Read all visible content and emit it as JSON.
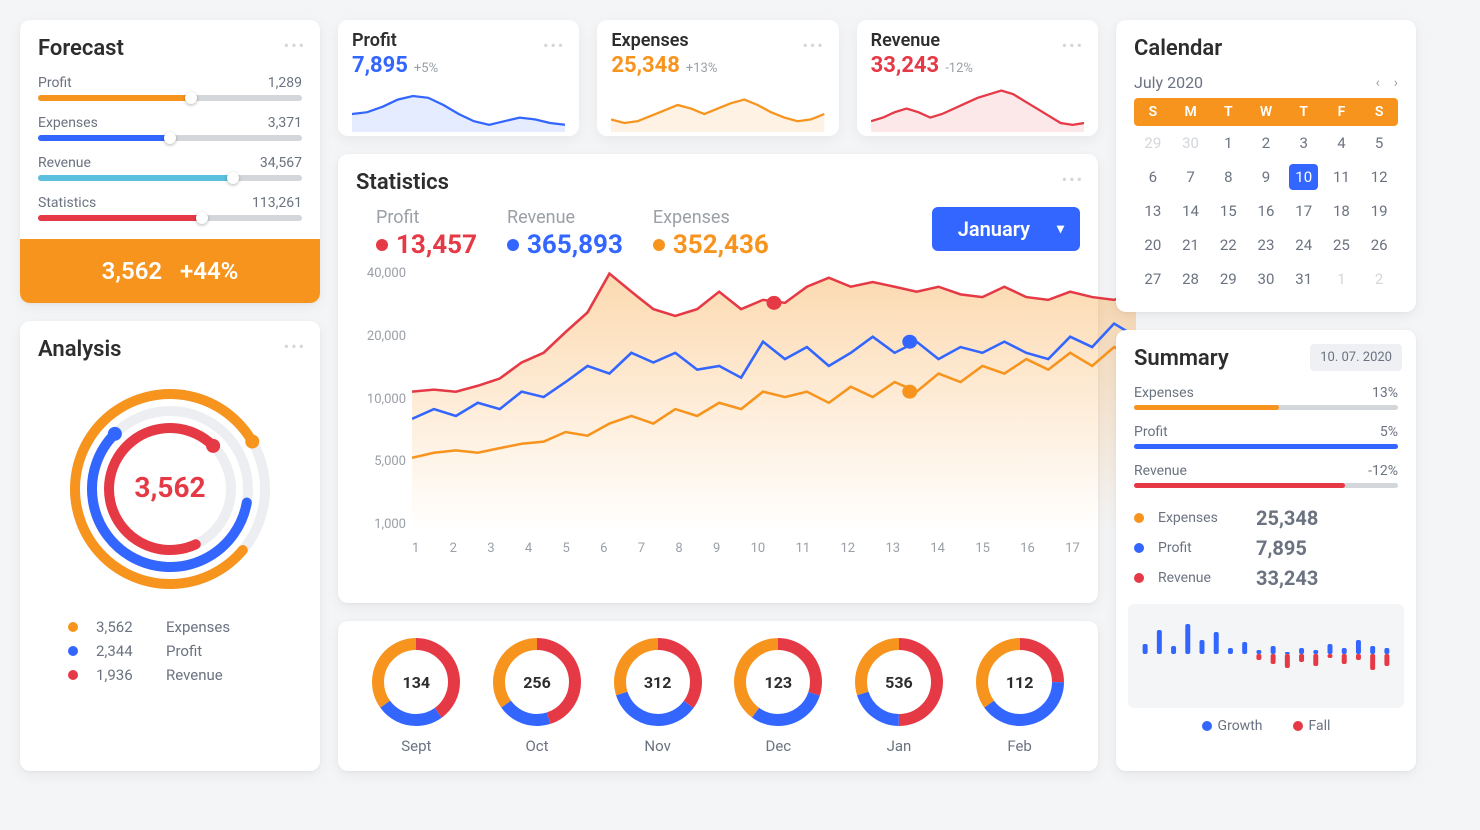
{
  "colors": {
    "orange": "#f7941e",
    "blue": "#3366ff",
    "red": "#e63946",
    "lightblue": "#5bc0de",
    "lightgrey": "#d3d6da"
  },
  "forecast": {
    "title": "Forecast",
    "rows": [
      {
        "label": "Profit",
        "value": "1,289",
        "pct": 58,
        "color": "#f7941e"
      },
      {
        "label": "Expenses",
        "value": "3,371",
        "pct": 50,
        "color": "#3366ff"
      },
      {
        "label": "Revenue",
        "value": "34,567",
        "pct": 74,
        "color": "#5bc0de"
      },
      {
        "label": "Statistics",
        "value": "113,261",
        "pct": 62,
        "color": "#e63946"
      }
    ],
    "summary_value": "3,562",
    "summary_change": "+44%"
  },
  "analysis": {
    "title": "Analysis",
    "center_value": "3,562",
    "rings": [
      {
        "color": "#f7941e",
        "radius": 95,
        "start": 130,
        "sweep": 290
      },
      {
        "color": "#3366ff",
        "radius": 78,
        "start": 100,
        "sweep": 215
      },
      {
        "color": "#e63946",
        "radius": 61,
        "start": 155,
        "sweep": 250
      }
    ],
    "legend": [
      {
        "color": "#f7941e",
        "value": "3,562",
        "label": "Expenses"
      },
      {
        "color": "#3366ff",
        "value": "2,344",
        "label": "Profit"
      },
      {
        "color": "#e63946",
        "value": "1,936",
        "label": "Revenue"
      }
    ]
  },
  "kpis": [
    {
      "title": "Profit",
      "value": "7,895",
      "change": "+5%",
      "color": "#3366ff",
      "spark": [
        40,
        38,
        32,
        24,
        20,
        22,
        30,
        40,
        48,
        52,
        48,
        44,
        46,
        50,
        52
      ]
    },
    {
      "title": "Expenses",
      "value": "25,348",
      "change": "+13%",
      "color": "#f7941e",
      "spark": [
        46,
        50,
        48,
        42,
        36,
        30,
        34,
        40,
        34,
        28,
        24,
        30,
        38,
        44,
        48,
        46,
        40
      ]
    },
    {
      "title": "Revenue",
      "value": "33,243",
      "change": "-12%",
      "color": "#e63946",
      "spark": [
        48,
        44,
        38,
        34,
        38,
        44,
        40,
        34,
        28,
        22,
        18,
        14,
        18,
        26,
        34,
        42,
        50,
        52,
        50
      ]
    }
  ],
  "statistics": {
    "title": "Statistics",
    "legend": [
      {
        "label": "Profit",
        "value": "13,457",
        "color": "#e63946"
      },
      {
        "label": "Revenue",
        "value": "365,893",
        "color": "#3366ff"
      },
      {
        "label": "Expenses",
        "value": "352,436",
        "color": "#f7941e"
      }
    ],
    "month_selected": "January",
    "y_ticks": [
      "40,000",
      "20,000",
      "10,000",
      "5,000",
      "1,000"
    ],
    "x_ticks": [
      "1",
      "2",
      "3",
      "4",
      "5",
      "6",
      "7",
      "8",
      "9",
      "10",
      "11",
      "12",
      "13",
      "14",
      "15",
      "16",
      "17"
    ],
    "series": {
      "red": [
        7.0,
        7.2,
        7.0,
        7.6,
        8.4,
        10.5,
        12.0,
        16.0,
        21.0,
        36.0,
        28.0,
        22.0,
        20.0,
        22.0,
        28.0,
        22.0,
        25.0,
        24.0,
        30.0,
        34.0,
        30.0,
        32.0,
        30.0,
        28.0,
        30.0,
        27.0,
        26.0,
        30.0,
        26.0,
        25.0,
        28.0,
        26.0,
        25.0,
        28.0
      ],
      "blue": [
        4.8,
        5.5,
        5.0,
        6.0,
        5.5,
        7.0,
        6.5,
        8.0,
        10.0,
        9.0,
        12.0,
        10.5,
        12.0,
        9.5,
        10.0,
        8.5,
        14.0,
        11.0,
        13.0,
        10.0,
        12.0,
        15.0,
        12.0,
        14.0,
        11.0,
        13.0,
        12.0,
        14.0,
        12.0,
        11.0,
        15.0,
        13.0,
        18.0,
        15.0
      ],
      "orange": [
        2.8,
        3.0,
        3.1,
        3.0,
        3.2,
        3.4,
        3.5,
        4.0,
        3.8,
        4.5,
        5.0,
        4.5,
        5.5,
        5.0,
        6.0,
        5.5,
        7.0,
        6.5,
        7.0,
        6.0,
        7.5,
        6.5,
        8.0,
        7.0,
        9.0,
        8.0,
        10.0,
        9.0,
        11.0,
        9.5,
        12.0,
        10.0,
        13.0,
        11.0
      ]
    },
    "markers": {
      "red_x": 9,
      "blue_x": 12,
      "orange_x": 12
    }
  },
  "donuts": {
    "items": [
      {
        "value": "134",
        "label": "Sept",
        "segs": [
          {
            "c": "#e63946",
            "p": 40
          },
          {
            "c": "#3366ff",
            "p": 25
          },
          {
            "c": "#f7941e",
            "p": 35
          }
        ]
      },
      {
        "value": "256",
        "label": "Oct",
        "segs": [
          {
            "c": "#e63946",
            "p": 45
          },
          {
            "c": "#3366ff",
            "p": 20
          },
          {
            "c": "#f7941e",
            "p": 35
          }
        ]
      },
      {
        "value": "312",
        "label": "Nov",
        "segs": [
          {
            "c": "#e63946",
            "p": 35
          },
          {
            "c": "#3366ff",
            "p": 35
          },
          {
            "c": "#f7941e",
            "p": 30
          }
        ]
      },
      {
        "value": "123",
        "label": "Dec",
        "segs": [
          {
            "c": "#e63946",
            "p": 30
          },
          {
            "c": "#3366ff",
            "p": 30
          },
          {
            "c": "#f7941e",
            "p": 40
          }
        ]
      },
      {
        "value": "536",
        "label": "Jan",
        "segs": [
          {
            "c": "#e63946",
            "p": 50
          },
          {
            "c": "#3366ff",
            "p": 20
          },
          {
            "c": "#f7941e",
            "p": 30
          }
        ]
      },
      {
        "value": "112",
        "label": "Feb",
        "segs": [
          {
            "c": "#e63946",
            "p": 25
          },
          {
            "c": "#3366ff",
            "p": 40
          },
          {
            "c": "#f7941e",
            "p": 35
          }
        ]
      }
    ]
  },
  "calendar": {
    "title": "Calendar",
    "month": "July 2020",
    "dow": [
      "S",
      "M",
      "T",
      "W",
      "T",
      "F",
      "S"
    ],
    "leading": [
      29,
      30
    ],
    "days": 31,
    "trailing": [
      1,
      2
    ],
    "selected": 10
  },
  "summary": {
    "title": "Summary",
    "date": "10. 07. 2020",
    "bars": [
      {
        "label": "Expenses",
        "pct_text": "13%",
        "pct": 55,
        "color": "#f7941e"
      },
      {
        "label": "Profit",
        "pct_text": "5%",
        "pct": 100,
        "color": "#3366ff"
      },
      {
        "label": "Revenue",
        "pct_text": "-12%",
        "pct": 80,
        "color": "#e63946"
      }
    ],
    "legend": [
      {
        "color": "#f7941e",
        "name": "Expenses",
        "num": "25,348"
      },
      {
        "color": "#3366ff",
        "name": "Profit",
        "num": "7,895"
      },
      {
        "color": "#e63946",
        "name": "Revenue",
        "num": "33,243"
      }
    ],
    "spark_blue": [
      10,
      24,
      8,
      30,
      14,
      22,
      6,
      12,
      4,
      8,
      2,
      6,
      4,
      10,
      6,
      14,
      8,
      6
    ],
    "spark_red": [
      0,
      0,
      0,
      0,
      0,
      0,
      0,
      0,
      6,
      10,
      14,
      8,
      12,
      4,
      10,
      6,
      16,
      12
    ],
    "foot_legend": [
      {
        "color": "#3366ff",
        "label": "Growth"
      },
      {
        "color": "#e63946",
        "label": "Fall"
      }
    ]
  }
}
